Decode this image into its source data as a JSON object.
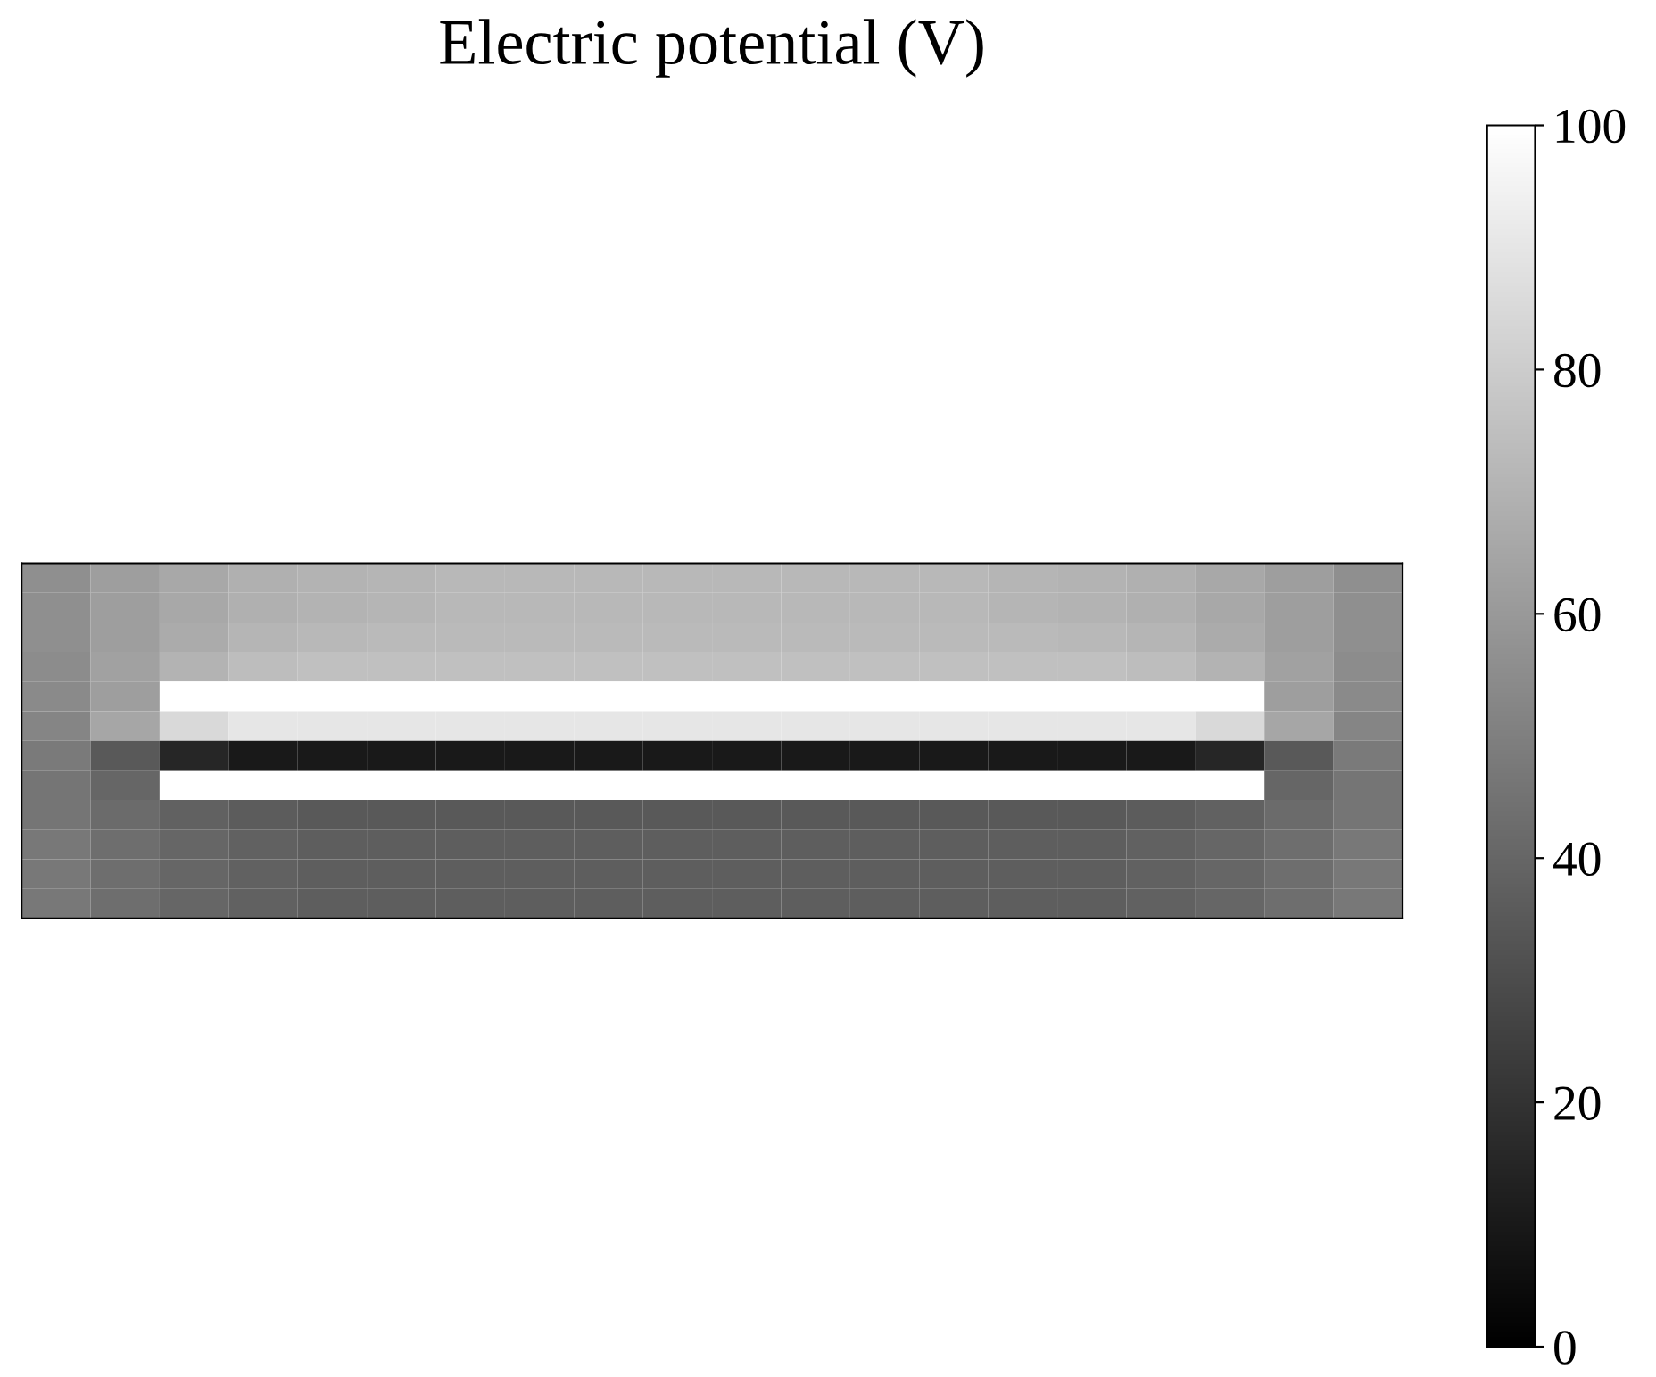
{
  "chart_data": {
    "type": "heatmap",
    "title": "Electric potential (V)",
    "categories": [
      null,
      null,
      null,
      null,
      null,
      null,
      null,
      null,
      null,
      null,
      null,
      null,
      null,
      null,
      null,
      null,
      null,
      null,
      null,
      null
    ],
    "y_categories": [
      null,
      null,
      null,
      null,
      null,
      null,
      null,
      null,
      null,
      null,
      null,
      null
    ],
    "cells": [
      [
        56,
        62,
        66,
        69,
        70,
        71,
        72,
        72,
        72,
        72,
        72,
        72,
        72,
        72,
        71,
        70,
        69,
        66,
        62,
        56
      ],
      [
        56,
        62,
        66,
        69,
        70,
        71,
        72,
        72,
        72,
        72,
        72,
        72,
        72,
        72,
        71,
        70,
        69,
        66,
        62,
        56
      ],
      [
        56,
        62,
        67,
        71,
        72,
        73,
        73,
        73,
        73,
        73,
        73,
        73,
        73,
        73,
        73,
        72,
        71,
        67,
        62,
        56
      ],
      [
        55,
        63,
        70,
        74,
        75,
        75,
        75,
        75,
        75,
        75,
        75,
        75,
        75,
        75,
        75,
        75,
        74,
        70,
        63,
        55
      ],
      [
        54,
        62,
        null,
        null,
        null,
        null,
        null,
        null,
        null,
        null,
        null,
        null,
        null,
        null,
        null,
        null,
        null,
        null,
        62,
        54
      ],
      [
        52,
        65,
        85,
        90,
        90,
        90,
        90,
        90,
        90,
        90,
        90,
        90,
        90,
        90,
        90,
        90,
        90,
        85,
        65,
        52
      ],
      [
        48,
        35,
        15,
        10,
        10,
        10,
        10,
        10,
        10,
        10,
        10,
        10,
        10,
        10,
        10,
        10,
        10,
        15,
        35,
        48
      ],
      [
        46,
        40,
        null,
        null,
        null,
        null,
        null,
        null,
        null,
        null,
        null,
        null,
        null,
        null,
        null,
        null,
        null,
        null,
        40,
        46
      ],
      [
        46,
        42,
        38,
        36,
        35,
        35,
        35,
        35,
        35,
        35,
        35,
        35,
        35,
        35,
        35,
        35,
        36,
        38,
        42,
        46
      ],
      [
        47,
        43,
        40,
        38,
        37,
        37,
        37,
        37,
        37,
        37,
        37,
        37,
        37,
        37,
        37,
        37,
        38,
        40,
        43,
        47
      ],
      [
        47,
        43,
        40,
        38,
        37,
        37,
        37,
        37,
        37,
        37,
        37,
        37,
        37,
        37,
        37,
        37,
        38,
        40,
        43,
        47
      ],
      [
        47,
        43,
        40,
        38,
        37,
        37,
        37,
        37,
        37,
        37,
        37,
        37,
        37,
        37,
        37,
        37,
        38,
        40,
        43,
        47
      ]
    ],
    "clim": [
      0,
      100
    ],
    "cticks": [
      0,
      20,
      40,
      60,
      80,
      100
    ],
    "tick_labels": false
  }
}
